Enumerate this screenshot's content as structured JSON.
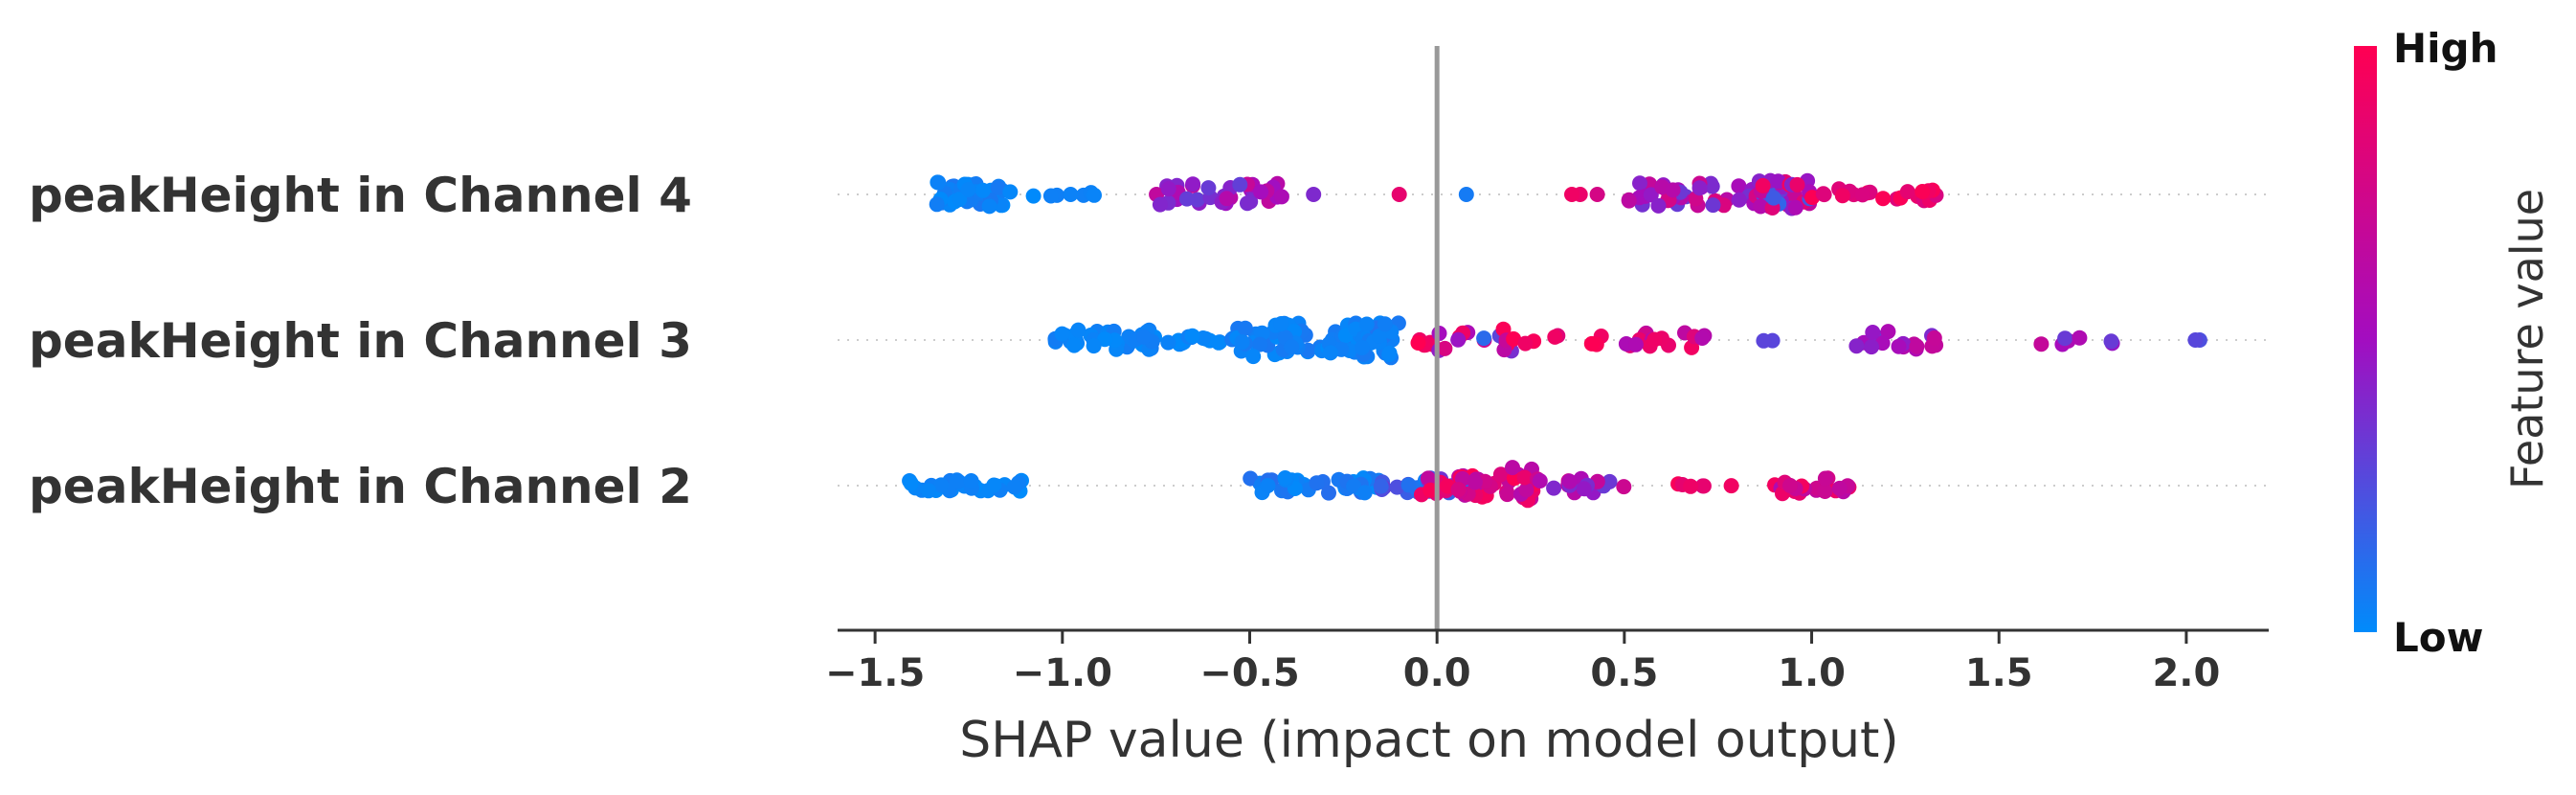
{
  "chart_data": {
    "type": "scatter",
    "subtype": "shap-beeswarm",
    "title": "",
    "xlabel": "SHAP value (impact on model output)",
    "xlim": [
      -1.6,
      2.22
    ],
    "xticks": [
      -1.5,
      -1.0,
      -0.5,
      0.0,
      0.5,
      1.0,
      1.5,
      2.0
    ],
    "xtick_labels": [
      "−1.5",
      "−1.0",
      "−0.5",
      "0.0",
      "0.5",
      "1.0",
      "1.5",
      "2.0"
    ],
    "reference_line_x": 0.0,
    "grid": false,
    "colorbar": {
      "title": "Feature value",
      "high_label": "High",
      "low_label": "Low",
      "high_color": "#ff0052",
      "mid_color": "#a30dc0",
      "low_color": "#008bfb"
    },
    "features": [
      {
        "name": "peakHeight in Channel 4",
        "clusters": [
          {
            "x_min": -1.34,
            "x_max": -1.15,
            "count": 46,
            "spread": 0.22,
            "fv_min": 0.0,
            "fv_max": 0.08
          },
          {
            "x_min": -1.14,
            "x_max": -0.9,
            "count": 8,
            "spread": 0.06,
            "fv_min": 0.0,
            "fv_max": 0.05
          },
          {
            "x_min": -0.75,
            "x_max": -0.4,
            "count": 36,
            "spread": 0.2,
            "fv_min": 0.3,
            "fv_max": 0.7
          },
          {
            "x_min": -0.35,
            "x_max": -0.3,
            "count": 1,
            "spread": 0.0,
            "fv_min": 0.35,
            "fv_max": 0.4
          },
          {
            "x_min": -0.11,
            "x_max": -0.09,
            "count": 1,
            "spread": 0.0,
            "fv_min": 0.85,
            "fv_max": 0.9
          },
          {
            "x_min": 0.07,
            "x_max": 0.09,
            "count": 1,
            "spread": 0.0,
            "fv_min": 0.05,
            "fv_max": 0.1
          },
          {
            "x_min": 0.35,
            "x_max": 0.5,
            "count": 3,
            "spread": 0.0,
            "fv_min": 0.75,
            "fv_max": 0.95
          },
          {
            "x_min": 0.5,
            "x_max": 0.85,
            "count": 38,
            "spread": 0.22,
            "fv_min": 0.3,
            "fv_max": 0.8
          },
          {
            "x_min": 0.85,
            "x_max": 1.0,
            "count": 34,
            "spread": 0.26,
            "fv_min": 0.15,
            "fv_max": 0.95
          },
          {
            "x_min": 1.0,
            "x_max": 1.35,
            "count": 22,
            "spread": 0.12,
            "fv_min": 0.75,
            "fv_max": 1.0
          }
        ]
      },
      {
        "name": "peakHeight in Channel 3",
        "clusters": [
          {
            "x_min": -1.02,
            "x_max": -0.75,
            "count": 34,
            "spread": 0.18,
            "fv_min": 0.0,
            "fv_max": 0.06
          },
          {
            "x_min": -0.72,
            "x_max": -0.52,
            "count": 16,
            "spread": 0.08,
            "fv_min": 0.0,
            "fv_max": 0.06
          },
          {
            "x_min": -0.55,
            "x_max": -0.2,
            "count": 62,
            "spread": 0.3,
            "fv_min": 0.0,
            "fv_max": 0.08
          },
          {
            "x_min": -0.2,
            "x_max": -0.1,
            "count": 30,
            "spread": 0.32,
            "fv_min": 0.0,
            "fv_max": 0.1
          },
          {
            "x_min": -0.1,
            "x_max": 0.0,
            "count": 6,
            "spread": 0.1,
            "fv_min": 0.85,
            "fv_max": 1.0
          },
          {
            "x_min": 0.0,
            "x_max": 0.2,
            "count": 16,
            "spread": 0.2,
            "fv_min": 0.1,
            "fv_max": 1.0
          },
          {
            "x_min": 0.2,
            "x_max": 0.45,
            "count": 8,
            "spread": 0.08,
            "fv_min": 0.8,
            "fv_max": 1.0
          },
          {
            "x_min": 0.5,
            "x_max": 0.72,
            "count": 16,
            "spread": 0.14,
            "fv_min": 0.55,
            "fv_max": 0.95
          },
          {
            "x_min": 0.85,
            "x_max": 0.92,
            "count": 2,
            "spread": 0.04,
            "fv_min": 0.15,
            "fv_max": 0.3
          },
          {
            "x_min": 1.1,
            "x_max": 1.36,
            "count": 17,
            "spread": 0.16,
            "fv_min": 0.3,
            "fv_max": 0.75
          },
          {
            "x_min": 1.6,
            "x_max": 1.82,
            "count": 7,
            "spread": 0.08,
            "fv_min": 0.3,
            "fv_max": 0.7
          },
          {
            "x_min": 2.01,
            "x_max": 2.04,
            "count": 2,
            "spread": 0.0,
            "fv_min": 0.15,
            "fv_max": 0.3
          }
        ]
      },
      {
        "name": "peakHeight in Channel 2",
        "clusters": [
          {
            "x_min": -1.43,
            "x_max": -1.05,
            "count": 28,
            "spread": 0.1,
            "fv_min": 0.0,
            "fv_max": 0.06
          },
          {
            "x_min": -0.5,
            "x_max": -0.15,
            "count": 40,
            "spread": 0.14,
            "fv_min": 0.0,
            "fv_max": 0.12
          },
          {
            "x_min": -0.15,
            "x_max": 0.08,
            "count": 22,
            "spread": 0.14,
            "fv_min": 0.05,
            "fv_max": 0.35
          },
          {
            "x_min": -0.05,
            "x_max": 0.2,
            "count": 36,
            "spread": 0.2,
            "fv_min": 0.6,
            "fv_max": 1.0
          },
          {
            "x_min": 0.2,
            "x_max": 0.26,
            "count": 14,
            "spread": 0.38,
            "fv_min": 0.55,
            "fv_max": 1.0
          },
          {
            "x_min": 0.26,
            "x_max": 0.5,
            "count": 16,
            "spread": 0.14,
            "fv_min": 0.3,
            "fv_max": 0.75
          },
          {
            "x_min": 0.55,
            "x_max": 0.85,
            "count": 6,
            "spread": 0.04,
            "fv_min": 0.75,
            "fv_max": 1.0
          },
          {
            "x_min": 0.9,
            "x_max": 1.15,
            "count": 22,
            "spread": 0.14,
            "fv_min": 0.55,
            "fv_max": 0.95
          }
        ]
      }
    ]
  }
}
